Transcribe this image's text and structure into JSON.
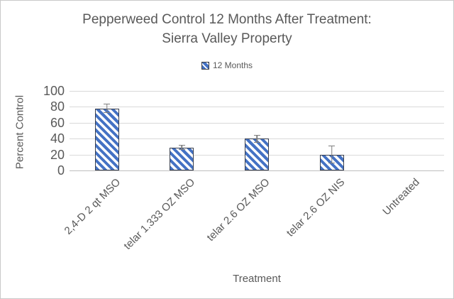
{
  "header": {
    "title_line1": "Pepperweed Control 12 Months After Treatment:",
    "title_line2": "Sierra Valley Property"
  },
  "chart_data": {
    "type": "bar",
    "title": "Pepperweed Control 12 Months After Treatment: Sierra Valley Property",
    "categories": [
      "2,4-D 2 qt MSO",
      "telar 1.333 OZ MSO",
      "telar 2.6 OZ MSO",
      "telar 2.6 OZ NIS",
      "Untreated"
    ],
    "series": [
      {
        "name": "12 Months",
        "values": [
          78,
          29,
          40,
          20,
          0
        ],
        "errors": [
          6,
          3,
          5,
          11,
          0
        ]
      }
    ],
    "xlabel": "Treatment",
    "ylabel": "Percent Control",
    "ylim": [
      0,
      100
    ],
    "yticks": [
      0,
      20,
      40,
      60,
      80,
      100
    ],
    "grid": true,
    "legend_position": "top",
    "bar_style": "diagonal-hatch",
    "colors": {
      "bar_stripe": "#4472C4",
      "bar_background": "#FFFFFF",
      "bar_border": "#373E4D",
      "error_bar": "#7F7F7F",
      "gridline": "#D9D9D9",
      "axis_line": "#BFBFBF",
      "text": "#595959",
      "frame_border": "#C9C9C9"
    }
  }
}
